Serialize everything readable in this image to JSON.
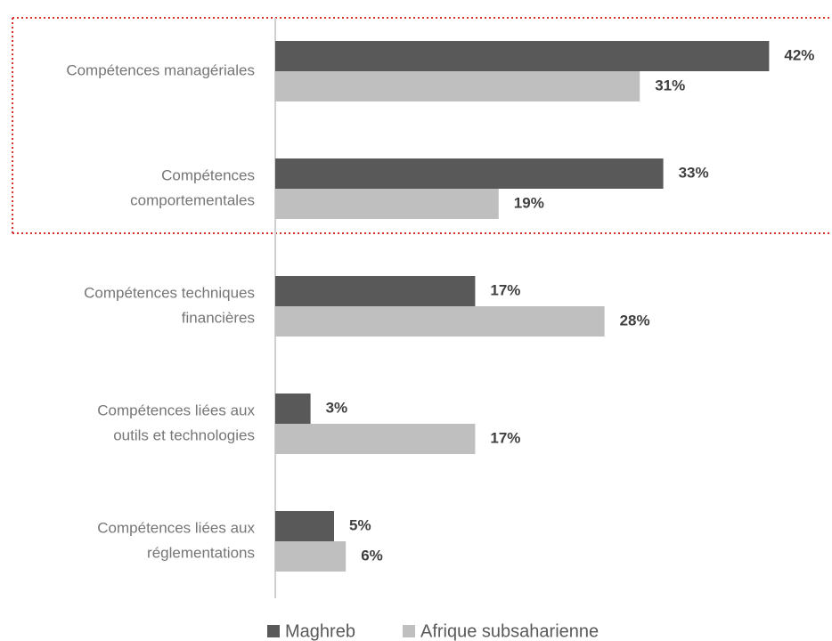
{
  "chart_data": {
    "type": "bar",
    "orientation": "horizontal",
    "categories": [
      [
        "Compétences managériales"
      ],
      [
        "Compétences",
        "comportementales"
      ],
      [
        "Compétences techniques",
        "financières"
      ],
      [
        "Compétences liées aux",
        "outils et technologies"
      ],
      [
        "Compétences liées aux",
        "réglementations"
      ]
    ],
    "series": [
      {
        "name": "Maghreb",
        "color": "#595959",
        "values": [
          42,
          33,
          17,
          3,
          5
        ],
        "value_labels": [
          "42%",
          "33%",
          "17%",
          "3%",
          "5%"
        ]
      },
      {
        "name": "Afrique subsaharienne",
        "color": "#bfbfbf",
        "values": [
          31,
          19,
          28,
          17,
          6
        ],
        "value_labels": [
          "31%",
          "19%",
          "28%",
          "17%",
          "6%"
        ]
      }
    ],
    "legend": "bottom"
  }
}
